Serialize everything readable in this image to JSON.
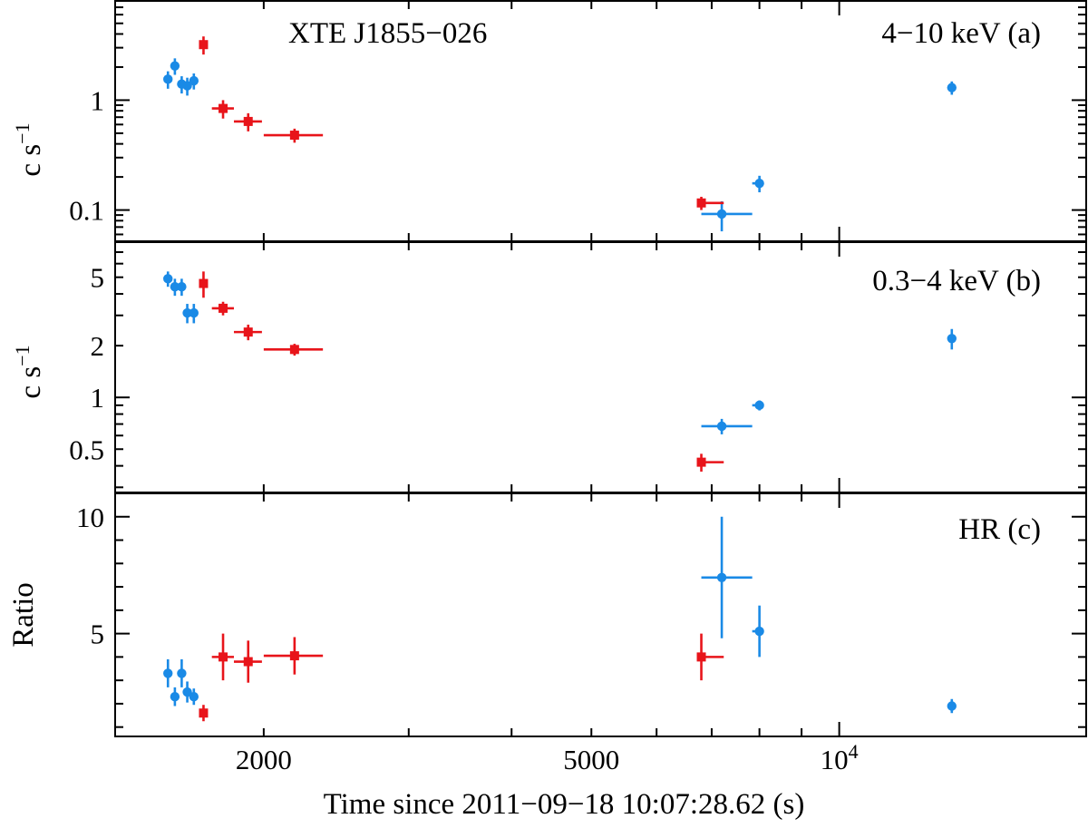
{
  "figure": {
    "xlabel": "Time since 2011−09−18 10:07:28.62 (s)",
    "x_axis": {
      "scale": "log",
      "range": [
        1320,
        20000
      ],
      "tick_labels": [
        {
          "value": 2000,
          "label": "2000",
          "sup": ""
        },
        {
          "value": 5000,
          "label": "5000",
          "sup": ""
        },
        {
          "value": 10000,
          "label": "10",
          "sup": "4"
        }
      ]
    },
    "colors": {
      "red_series": "#e8141a",
      "blue_series": "#1a8ae6",
      "frame": "#000000"
    }
  },
  "chart_data": [
    {
      "type": "scatter",
      "panel": "a",
      "title": "XTE J1855−026",
      "panel_label": "4−10 keV (a)",
      "ylabel": "c s",
      "ylabel_sup": "−1",
      "yscale": "log",
      "ylim": [
        0.052,
        8.0
      ],
      "y_tick_labels": [
        {
          "value": 0.1,
          "label": "0.1"
        },
        {
          "value": 1,
          "label": "1"
        }
      ],
      "series": [
        {
          "color": "#1a8ae6",
          "marker": "circle",
          "points": [
            {
              "x": 1530,
              "xerr": [
                0,
                0
              ],
              "y": 1.55,
              "yerr": [
                0.28,
                0.28
              ]
            },
            {
              "x": 1560,
              "xerr": [
                0,
                0
              ],
              "y": 2.05,
              "yerr": [
                0.35,
                0.35
              ]
            },
            {
              "x": 1590,
              "xerr": [
                0,
                0
              ],
              "y": 1.4,
              "yerr": [
                0.25,
                0.25
              ]
            },
            {
              "x": 1615,
              "xerr": [
                0,
                0
              ],
              "y": 1.35,
              "yerr": [
                0.25,
                0.25
              ]
            },
            {
              "x": 1645,
              "xerr": [
                0,
                0
              ],
              "y": 1.5,
              "yerr": [
                0.25,
                0.25
              ]
            },
            {
              "x": 7200,
              "xerr": [
                400,
                640
              ],
              "y": 0.092,
              "yerr": [
                0.028,
                0.028
              ]
            },
            {
              "x": 8000,
              "xerr": [
                160,
                0
              ],
              "y": 0.175,
              "yerr": [
                0.03,
                0.03
              ]
            },
            {
              "x": 13700,
              "xerr": [
                0,
                0
              ],
              "y": 1.3,
              "yerr": [
                0.18,
                0.18
              ]
            }
          ]
        },
        {
          "color": "#e8141a",
          "marker": "square",
          "points": [
            {
              "x": 1690,
              "xerr": [
                0,
                0
              ],
              "y": 3.2,
              "yerr": [
                0.6,
                0.6
              ]
            },
            {
              "x": 1785,
              "xerr": [
                55,
                55
              ],
              "y": 0.84,
              "yerr": [
                0.16,
                0.16
              ]
            },
            {
              "x": 1915,
              "xerr": [
                75,
                75
              ],
              "y": 0.64,
              "yerr": [
                0.12,
                0.12
              ]
            },
            {
              "x": 2180,
              "xerr": [
                180,
                180
              ],
              "y": 0.48,
              "yerr": [
                0.07,
                0.07
              ]
            },
            {
              "x": 6800,
              "xerr": [
                0,
                440
              ],
              "y": 0.116,
              "yerr": [
                0.016,
                0.016
              ]
            }
          ]
        }
      ]
    },
    {
      "type": "scatter",
      "panel": "b",
      "panel_label": "0.3−4 keV (b)",
      "ylabel": "c s",
      "ylabel_sup": "−1",
      "yscale": "log",
      "ylim": [
        0.28,
        8.0
      ],
      "y_tick_labels": [
        {
          "value": 0.5,
          "label": "0.5"
        },
        {
          "value": 1,
          "label": "1"
        },
        {
          "value": 2,
          "label": "2"
        },
        {
          "value": 5,
          "label": "5"
        }
      ],
      "series": [
        {
          "color": "#1a8ae6",
          "marker": "circle",
          "points": [
            {
              "x": 1530,
              "xerr": [
                0,
                0
              ],
              "y": 4.9,
              "yerr": [
                0.5,
                0.5
              ]
            },
            {
              "x": 1560,
              "xerr": [
                0,
                0
              ],
              "y": 4.4,
              "yerr": [
                0.5,
                0.5
              ]
            },
            {
              "x": 1590,
              "xerr": [
                0,
                0
              ],
              "y": 4.4,
              "yerr": [
                0.5,
                0.5
              ]
            },
            {
              "x": 1615,
              "xerr": [
                0,
                0
              ],
              "y": 3.1,
              "yerr": [
                0.4,
                0.4
              ]
            },
            {
              "x": 1645,
              "xerr": [
                0,
                0
              ],
              "y": 3.1,
              "yerr": [
                0.4,
                0.4
              ]
            },
            {
              "x": 7200,
              "xerr": [
                400,
                640
              ],
              "y": 0.68,
              "yerr": [
                0.07,
                0.07
              ]
            },
            {
              "x": 8000,
              "xerr": [
                160,
                0
              ],
              "y": 0.9,
              "yerr": [
                0.06,
                0.06
              ]
            },
            {
              "x": 13700,
              "xerr": [
                0,
                0
              ],
              "y": 2.2,
              "yerr": [
                0.3,
                0.3
              ]
            }
          ]
        },
        {
          "color": "#e8141a",
          "marker": "square",
          "points": [
            {
              "x": 1690,
              "xerr": [
                0,
                0
              ],
              "y": 4.6,
              "yerr": [
                0.8,
                0.8
              ]
            },
            {
              "x": 1785,
              "xerr": [
                55,
                55
              ],
              "y": 3.3,
              "yerr": [
                0.3,
                0.3
              ]
            },
            {
              "x": 1915,
              "xerr": [
                75,
                75
              ],
              "y": 2.4,
              "yerr": [
                0.25,
                0.25
              ]
            },
            {
              "x": 2180,
              "xerr": [
                180,
                180
              ],
              "y": 1.9,
              "yerr": [
                0.15,
                0.15
              ]
            },
            {
              "x": 6800,
              "xerr": [
                0,
                440
              ],
              "y": 0.42,
              "yerr": [
                0.05,
                0.05
              ]
            }
          ]
        }
      ]
    },
    {
      "type": "scatter",
      "panel": "c",
      "panel_label": "HR (c)",
      "ylabel": "Ratio",
      "yscale": "linear",
      "ylim": [
        0.6,
        11.0
      ],
      "y_tick_labels": [
        {
          "value": 5,
          "label": "5"
        },
        {
          "value": 10,
          "label": "10"
        }
      ],
      "series": [
        {
          "color": "#1a8ae6",
          "marker": "circle",
          "points": [
            {
              "x": 1530,
              "xerr": [
                0,
                0
              ],
              "y": 3.3,
              "yerr": [
                0.6,
                0.6
              ]
            },
            {
              "x": 1560,
              "xerr": [
                0,
                0
              ],
              "y": 2.3,
              "yerr": [
                0.4,
                0.4
              ]
            },
            {
              "x": 1590,
              "xerr": [
                0,
                0
              ],
              "y": 3.3,
              "yerr": [
                0.6,
                0.6
              ]
            },
            {
              "x": 1615,
              "xerr": [
                0,
                0
              ],
              "y": 2.5,
              "yerr": [
                0.45,
                0.45
              ]
            },
            {
              "x": 1645,
              "xerr": [
                0,
                0
              ],
              "y": 2.3,
              "yerr": [
                0.35,
                0.35
              ]
            },
            {
              "x": 7200,
              "xerr": [
                400,
                640
              ],
              "y": 7.4,
              "yerr": [
                2.6,
                2.6
              ]
            },
            {
              "x": 8000,
              "xerr": [
                160,
                0
              ],
              "y": 5.1,
              "yerr": [
                1.1,
                1.1
              ]
            },
            {
              "x": 13700,
              "xerr": [
                0,
                0
              ],
              "y": 1.9,
              "yerr": [
                0.3,
                0.3
              ]
            }
          ]
        },
        {
          "color": "#e8141a",
          "marker": "square",
          "points": [
            {
              "x": 1690,
              "xerr": [
                0,
                0
              ],
              "y": 1.6,
              "yerr": [
                0.35,
                0.35
              ]
            },
            {
              "x": 1785,
              "xerr": [
                55,
                55
              ],
              "y": 4.0,
              "yerr": [
                1.0,
                1.0
              ]
            },
            {
              "x": 1915,
              "xerr": [
                75,
                75
              ],
              "y": 3.8,
              "yerr": [
                0.9,
                0.9
              ]
            },
            {
              "x": 2180,
              "xerr": [
                180,
                180
              ],
              "y": 4.05,
              "yerr": [
                0.8,
                0.8
              ]
            },
            {
              "x": 6800,
              "xerr": [
                0,
                440
              ],
              "y": 4.0,
              "yerr": [
                1.0,
                1.0
              ]
            }
          ]
        }
      ]
    }
  ]
}
